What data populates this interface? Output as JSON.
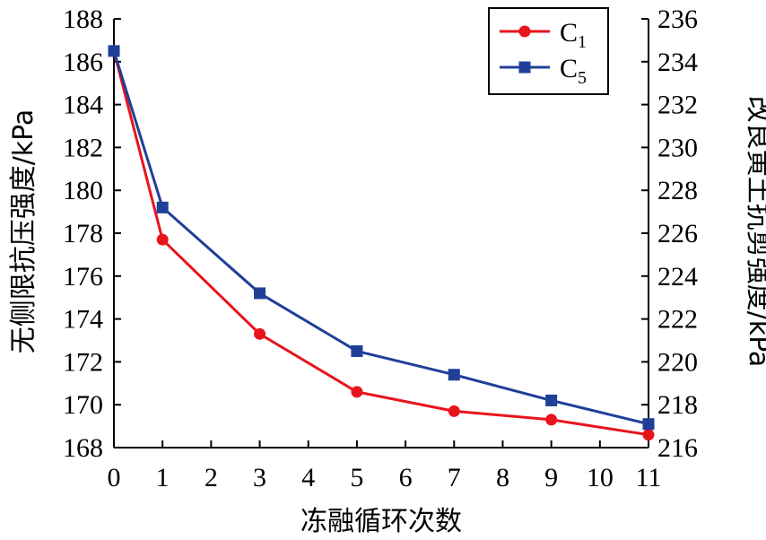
{
  "chart_data": {
    "type": "line",
    "x": [
      0,
      1,
      3,
      5,
      7,
      9,
      11
    ],
    "x_ticks": [
      "0",
      "1",
      "2",
      "3",
      "4",
      "5",
      "6",
      "7",
      "8",
      "9",
      "10",
      "11"
    ],
    "xlim": [
      0,
      11
    ],
    "xlabel": "冻融循环次数",
    "ylabel_left": "无侧限抗压强度/kPa",
    "ylabel_right": "改良黄土抗剪强度/kPa",
    "ylim_left": [
      168,
      188
    ],
    "ylim_right": [
      216,
      236
    ],
    "y_ticks_left": [
      "168",
      "170",
      "172",
      "174",
      "176",
      "178",
      "180",
      "182",
      "184",
      "186",
      "188"
    ],
    "y_ticks_right": [
      "216",
      "218",
      "220",
      "222",
      "224",
      "226",
      "228",
      "230",
      "232",
      "234",
      "236"
    ],
    "legend_position": "top-right",
    "series": [
      {
        "name": "C1",
        "legend_main": "C",
        "legend_sub": "1",
        "axis": "left",
        "color": "#e8141c",
        "marker": "circle",
        "values": [
          186.5,
          177.7,
          173.3,
          170.6,
          169.7,
          169.3,
          168.6
        ]
      },
      {
        "name": "C5",
        "legend_main": "C",
        "legend_sub": "5",
        "axis": "right",
        "color": "#1f3f98",
        "marker": "square",
        "values": [
          234.5,
          227.2,
          223.2,
          220.5,
          219.4,
          218.2,
          217.1
        ]
      }
    ]
  }
}
